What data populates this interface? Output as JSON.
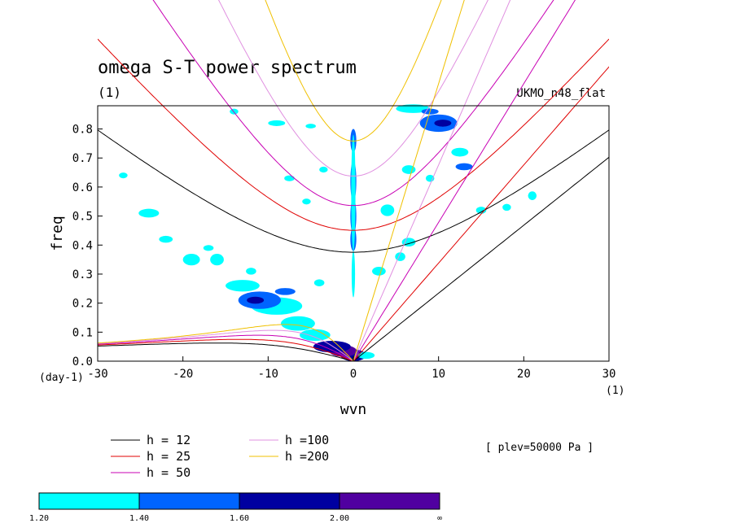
{
  "chart_data": {
    "type": "line",
    "title": "omega S-T power spectrum",
    "subtitle": "(1)",
    "model": "UKMO_n48_flat",
    "xlabel": "wvn",
    "ylabel": "freq",
    "y_unit": "(day-1)",
    "x_unit": "(1)",
    "xlim": [
      -30,
      30
    ],
    "ylim": [
      0,
      0.88
    ],
    "x_ticks": [
      -30,
      -20,
      -10,
      0,
      10,
      20,
      30
    ],
    "x_tick_labels": [
      "-30",
      "-20",
      "-10",
      "0",
      "10",
      "20",
      "30"
    ],
    "y_ticks": [
      0,
      0.1,
      0.2,
      0.3,
      0.4,
      0.5,
      0.6,
      0.7,
      0.8
    ],
    "y_tick_labels": [
      "0.0",
      "0.1",
      "0.2",
      "0.3",
      "0.4",
      "0.5",
      "0.6",
      "0.7",
      "0.8"
    ],
    "grid": false,
    "annotation": "[ plev=50000 Pa ]",
    "series": [
      {
        "name": "h = 12",
        "color": "#000000"
      },
      {
        "name": "h = 25",
        "color": "#e00000"
      },
      {
        "name": "h = 50",
        "color": "#c800b4"
      },
      {
        "name": "h =100",
        "color": "#e090e0"
      },
      {
        "name": "h =200",
        "color": "#f0c000"
      }
    ],
    "colorbar": {
      "levels": [
        "1.20",
        "1.40",
        "1.60",
        "2.00",
        "∞"
      ],
      "colors": [
        "#00ffff",
        "#0064ff",
        "#0000a0",
        "#5000a0"
      ]
    },
    "power_blobs": [
      {
        "x": 0,
        "y": 0.02,
        "rx": 1.5,
        "ry": 0.02,
        "lvl": 2
      },
      {
        "x": -1.2,
        "y": 0.035,
        "rx": 1.6,
        "ry": 0.02,
        "lvl": 3
      },
      {
        "x": -2.5,
        "y": 0.05,
        "rx": 2.2,
        "ry": 0.02,
        "lvl": 2
      },
      {
        "x": 1.5,
        "y": 0.02,
        "rx": 1.0,
        "ry": 0.012,
        "lvl": 0
      },
      {
        "x": -4.5,
        "y": 0.09,
        "rx": 1.8,
        "ry": 0.02,
        "lvl": 0
      },
      {
        "x": -6.5,
        "y": 0.13,
        "rx": 2.0,
        "ry": 0.025,
        "lvl": 0
      },
      {
        "x": -9,
        "y": 0.19,
        "rx": 3.0,
        "ry": 0.03,
        "lvl": 0
      },
      {
        "x": -11,
        "y": 0.21,
        "rx": 2.5,
        "ry": 0.03,
        "lvl": 1
      },
      {
        "x": -11.5,
        "y": 0.21,
        "rx": 1.0,
        "ry": 0.012,
        "lvl": 2
      },
      {
        "x": -13,
        "y": 0.26,
        "rx": 2.0,
        "ry": 0.02,
        "lvl": 0
      },
      {
        "x": -8,
        "y": 0.24,
        "rx": 1.2,
        "ry": 0.012,
        "lvl": 1
      },
      {
        "x": -16,
        "y": 0.35,
        "rx": 0.8,
        "ry": 0.02,
        "lvl": 0
      },
      {
        "x": -19,
        "y": 0.35,
        "rx": 1.0,
        "ry": 0.02,
        "lvl": 0
      },
      {
        "x": -24,
        "y": 0.51,
        "rx": 1.2,
        "ry": 0.015,
        "lvl": 0
      },
      {
        "x": -22,
        "y": 0.42,
        "rx": 0.8,
        "ry": 0.012,
        "lvl": 0
      },
      {
        "x": -27,
        "y": 0.64,
        "rx": 0.5,
        "ry": 0.01,
        "lvl": 0
      },
      {
        "x": 0,
        "y": 0.76,
        "rx": 0.35,
        "ry": 0.04,
        "lvl": 1
      },
      {
        "x": 0,
        "y": 0.62,
        "rx": 0.35,
        "ry": 0.07,
        "lvl": 1
      },
      {
        "x": 0,
        "y": 0.5,
        "rx": 0.35,
        "ry": 0.06,
        "lvl": 1
      },
      {
        "x": 0,
        "y": 0.42,
        "rx": 0.35,
        "ry": 0.04,
        "lvl": 1
      },
      {
        "x": 0,
        "y": 0.58,
        "rx": 0.25,
        "ry": 0.2,
        "lvl": 0
      },
      {
        "x": 0,
        "y": 0.3,
        "rx": 0.2,
        "ry": 0.08,
        "lvl": 0
      },
      {
        "x": 10,
        "y": 0.82,
        "rx": 2.2,
        "ry": 0.03,
        "lvl": 1
      },
      {
        "x": 10.5,
        "y": 0.82,
        "rx": 1.0,
        "ry": 0.012,
        "lvl": 2
      },
      {
        "x": 7,
        "y": 0.87,
        "rx": 2.0,
        "ry": 0.015,
        "lvl": 0
      },
      {
        "x": 9,
        "y": 0.86,
        "rx": 1.0,
        "ry": 0.01,
        "lvl": 1
      },
      {
        "x": 12.5,
        "y": 0.72,
        "rx": 1.0,
        "ry": 0.015,
        "lvl": 0
      },
      {
        "x": 13,
        "y": 0.67,
        "rx": 1.0,
        "ry": 0.012,
        "lvl": 1
      },
      {
        "x": 4,
        "y": 0.52,
        "rx": 0.8,
        "ry": 0.02,
        "lvl": 0
      },
      {
        "x": 6.5,
        "y": 0.66,
        "rx": 0.8,
        "ry": 0.015,
        "lvl": 0
      },
      {
        "x": -3.5,
        "y": 0.66,
        "rx": 0.5,
        "ry": 0.01,
        "lvl": 0
      },
      {
        "x": -7.5,
        "y": 0.63,
        "rx": 0.6,
        "ry": 0.01,
        "lvl": 0
      },
      {
        "x": -5.5,
        "y": 0.55,
        "rx": 0.5,
        "ry": 0.01,
        "lvl": 0
      },
      {
        "x": -14,
        "y": 0.86,
        "rx": 0.5,
        "ry": 0.01,
        "lvl": 0
      },
      {
        "x": -9,
        "y": 0.82,
        "rx": 1.0,
        "ry": 0.01,
        "lvl": 0
      },
      {
        "x": -5,
        "y": 0.81,
        "rx": 0.6,
        "ry": 0.008,
        "lvl": 0
      },
      {
        "x": 3,
        "y": 0.31,
        "rx": 0.8,
        "ry": 0.015,
        "lvl": 0
      },
      {
        "x": 6.5,
        "y": 0.41,
        "rx": 0.8,
        "ry": 0.015,
        "lvl": 0
      },
      {
        "x": 5.5,
        "y": 0.36,
        "rx": 0.6,
        "ry": 0.015,
        "lvl": 0
      },
      {
        "x": 18,
        "y": 0.53,
        "rx": 0.5,
        "ry": 0.012,
        "lvl": 0
      },
      {
        "x": 21,
        "y": 0.57,
        "rx": 0.5,
        "ry": 0.015,
        "lvl": 0
      },
      {
        "x": -17,
        "y": 0.39,
        "rx": 0.6,
        "ry": 0.01,
        "lvl": 0
      },
      {
        "x": -12,
        "y": 0.31,
        "rx": 0.6,
        "ry": 0.012,
        "lvl": 0
      },
      {
        "x": -4,
        "y": 0.27,
        "rx": 0.6,
        "ry": 0.012,
        "lvl": 0
      },
      {
        "x": 9,
        "y": 0.63,
        "rx": 0.5,
        "ry": 0.012,
        "lvl": 0
      },
      {
        "x": 15,
        "y": 0.52,
        "rx": 0.6,
        "ry": 0.012,
        "lvl": 0
      }
    ]
  }
}
